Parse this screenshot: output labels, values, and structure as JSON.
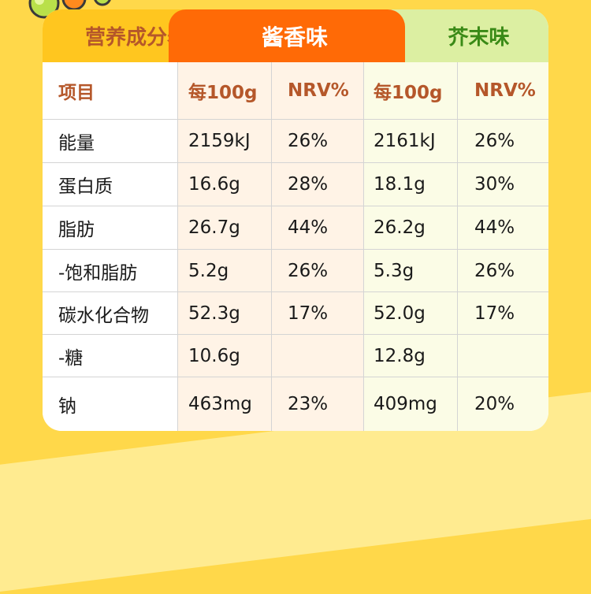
{
  "header": {
    "title": "营养成分表",
    "flavor_a": "酱香味",
    "flavor_b": "芥末味"
  },
  "table": {
    "columns": [
      "项目",
      "每100g",
      "NRV%",
      "每100g",
      "NRV%"
    ],
    "rows": [
      {
        "item": "能量",
        "a_per100g": "2159kJ",
        "a_nrv": "26%",
        "b_per100g": "2161kJ",
        "b_nrv": "26%"
      },
      {
        "item": "蛋白质",
        "a_per100g": "16.6g",
        "a_nrv": "28%",
        "b_per100g": "18.1g",
        "b_nrv": "30%"
      },
      {
        "item": "脂肪",
        "a_per100g": "26.7g",
        "a_nrv": "44%",
        "b_per100g": "26.2g",
        "b_nrv": "44%"
      },
      {
        "item": "-饱和脂肪",
        "a_per100g": "5.2g",
        "a_nrv": "26%",
        "b_per100g": "5.3g",
        "b_nrv": "26%"
      },
      {
        "item": "碳水化合物",
        "a_per100g": "52.3g",
        "a_nrv": "17%",
        "b_per100g": "52.0g",
        "b_nrv": "17%"
      },
      {
        "item": "-糖",
        "a_per100g": "10.6g",
        "a_nrv": "",
        "b_per100g": "12.8g",
        "b_nrv": ""
      },
      {
        "item": "钠",
        "a_per100g": "463mg",
        "a_nrv": "23%",
        "b_per100g": "409mg",
        "b_nrv": "20%"
      }
    ]
  },
  "colors": {
    "background": "#ffd84a",
    "title_tab": "#ffc61f",
    "flavor_a_tab": "#ff6a06",
    "flavor_b_tab": "#dcefa2",
    "header_text": "#b5572a",
    "flavor_b_text": "#3a8a16"
  }
}
